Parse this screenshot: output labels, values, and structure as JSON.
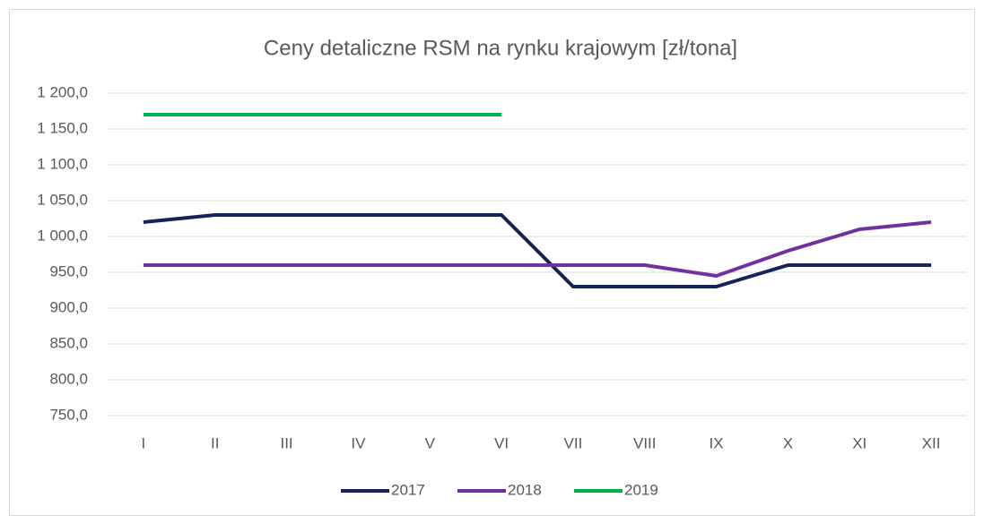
{
  "chart_data": {
    "type": "line",
    "title": "Ceny detaliczne RSM na rynku krajowym [zł/tona]",
    "categories": [
      "I",
      "II",
      "III",
      "IV",
      "V",
      "VI",
      "VII",
      "VIII",
      "IX",
      "X",
      "XI",
      "XII"
    ],
    "series": [
      {
        "name": "2017",
        "color": "#14245a",
        "values": [
          1020,
          1030,
          1030,
          1030,
          1030,
          1030,
          930,
          930,
          930,
          960,
          960,
          960
        ]
      },
      {
        "name": "2018",
        "color": "#7030a0",
        "values": [
          960,
          960,
          960,
          960,
          960,
          960,
          960,
          960,
          945,
          980,
          1010,
          1020
        ]
      },
      {
        "name": "2019",
        "color": "#00b050",
        "values": [
          1170,
          1170,
          1170,
          1170,
          1170,
          1170,
          null,
          null,
          null,
          null,
          null,
          null
        ]
      }
    ],
    "ylim": [
      750,
      1200
    ],
    "yticks": [
      {
        "value": 750,
        "label": "750,0"
      },
      {
        "value": 800,
        "label": "800,0"
      },
      {
        "value": 850,
        "label": "850,0"
      },
      {
        "value": 900,
        "label": "900,0"
      },
      {
        "value": 950,
        "label": "950,0"
      },
      {
        "value": 1000,
        "label": "1 000,0"
      },
      {
        "value": 1050,
        "label": "1 050,0"
      },
      {
        "value": 1100,
        "label": "1 100,0"
      },
      {
        "value": 1150,
        "label": "1 150,0"
      },
      {
        "value": 1200,
        "label": "1 200,0"
      }
    ],
    "grid": true,
    "legend": "bottom"
  }
}
